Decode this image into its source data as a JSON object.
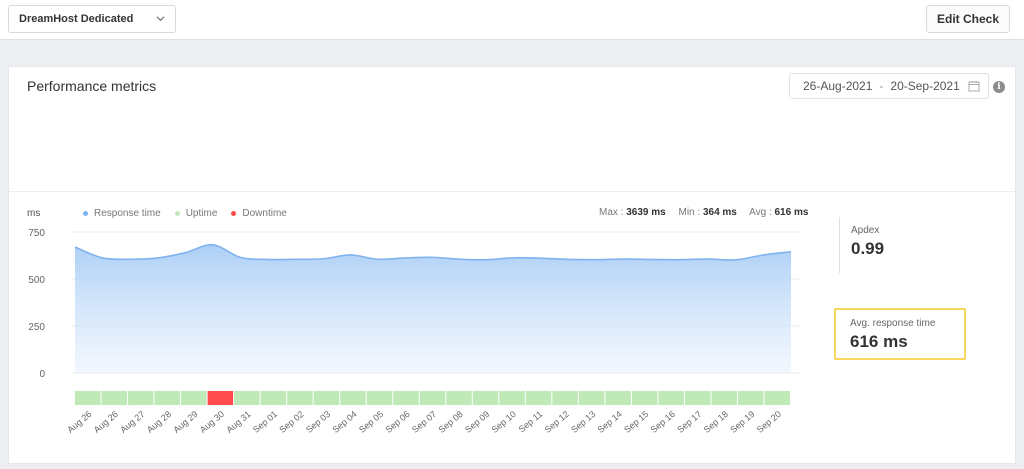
{
  "header": {
    "check_selector": "DreamHost Dedicated",
    "edit_check_label": "Edit Check"
  },
  "panel": {
    "title": "Performance metrics",
    "date_from": "26-Aug-2021",
    "date_separator": "-",
    "date_to": "20-Sep-2021",
    "info_glyph": "i"
  },
  "chart_header": {
    "unit": "ms",
    "legend": [
      {
        "label": "Response time",
        "color": "#7fb2ee"
      },
      {
        "label": "Uptime",
        "color": "#bfeab8"
      },
      {
        "label": "Downtime",
        "color": "#ff4b4b"
      }
    ],
    "max_label": "Max :",
    "max_value": "3639 ms",
    "min_label": "Min :",
    "min_value": "364 ms",
    "avg_label": "Avg :",
    "avg_value": "616 ms"
  },
  "chart_data": {
    "type": "area",
    "ylim": [
      0,
      750
    ],
    "yticks": [
      0,
      250,
      500,
      750
    ],
    "ylabel": "ms",
    "x": [
      "Aug 26",
      "Aug 26",
      "Aug 27",
      "Aug 28",
      "Aug 29",
      "Aug 30",
      "Aug 31",
      "Sep 01",
      "Sep 02",
      "Sep 03",
      "Sep 04",
      "Sep 05",
      "Sep 06",
      "Sep 07",
      "Sep 08",
      "Sep 09",
      "Sep 10",
      "Sep 11",
      "Sep 12",
      "Sep 13",
      "Sep 14",
      "Sep 15",
      "Sep 16",
      "Sep 17",
      "Sep 18",
      "Sep 19",
      "Sep 20"
    ],
    "series": [
      {
        "name": "Response time",
        "values": [
          670,
          612,
          605,
          612,
          640,
          682,
          615,
          604,
          605,
          607,
          628,
          605,
          612,
          615,
          605,
          603,
          613,
          610,
          604,
          603,
          606,
          604,
          603,
          606,
          602,
          628,
          645
        ]
      }
    ],
    "status_bar": [
      "up",
      "up",
      "up",
      "up",
      "up",
      "down",
      "up",
      "up",
      "up",
      "up",
      "up",
      "up",
      "up",
      "up",
      "up",
      "up",
      "up",
      "up",
      "up",
      "up",
      "up",
      "up",
      "up",
      "up",
      "up",
      "up",
      "up"
    ],
    "colors": {
      "line": "#7fb2ee",
      "uptime": "#bfeab8",
      "downtime": "#ff4b4b",
      "grid": "#e6e9ec"
    }
  },
  "apdex": {
    "label": "Apdex",
    "value": "0.99"
  },
  "avg_response": {
    "label": "Avg. response time",
    "value": "616 ms"
  },
  "icons": {
    "dropdown": "chevron-down-icon",
    "calendar": "calendar-icon",
    "info": "info-icon"
  }
}
